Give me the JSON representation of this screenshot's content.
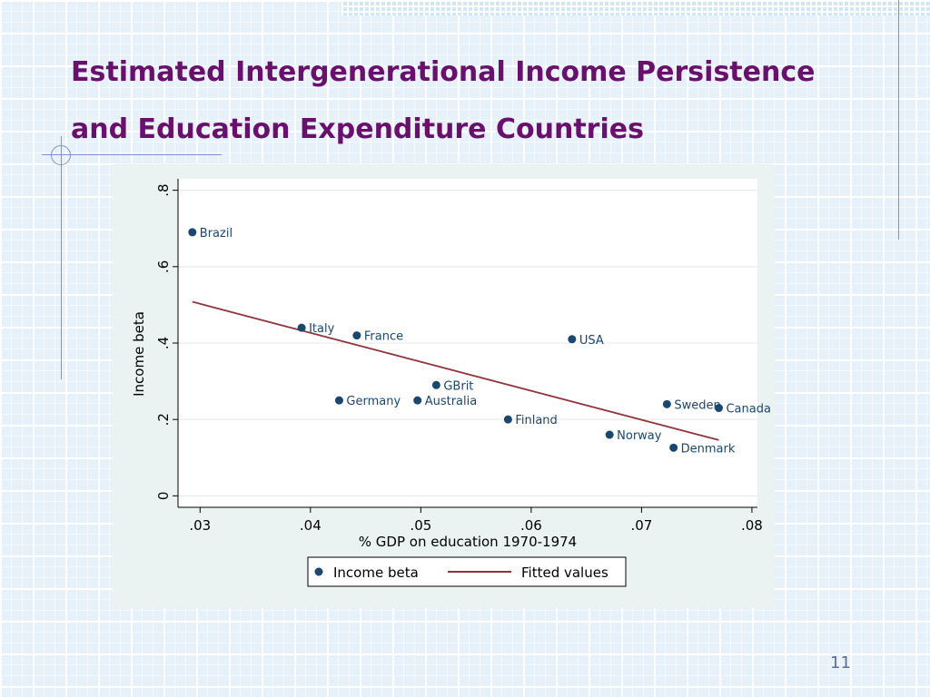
{
  "slide": {
    "title_line1": "Estimated Intergenerational Income Persistence",
    "title_line2": "and Education Expenditure Countries",
    "page_number": "11"
  },
  "colors": {
    "title": "#6b0f6e",
    "marker": "#1a476f",
    "fit_line": "#90353b",
    "plot_bg": "#ffffff",
    "panel_bg": "#eaf2f2"
  },
  "chart_data": {
    "type": "scatter",
    "xlabel": "% GDP on education 1970-1974",
    "ylabel": "Income beta",
    "xlim": [
      0.028,
      0.0805
    ],
    "ylim": [
      -0.03,
      0.83
    ],
    "xticks": [
      {
        "value": 0.03,
        "label": ".03"
      },
      {
        "value": 0.04,
        "label": ".04"
      },
      {
        "value": 0.05,
        "label": ".05"
      },
      {
        "value": 0.06,
        "label": ".06"
      },
      {
        "value": 0.07,
        "label": ".07"
      },
      {
        "value": 0.08,
        "label": ".08"
      }
    ],
    "yticks": [
      {
        "value": 0,
        "label": "0"
      },
      {
        "value": 0.2,
        "label": ".2"
      },
      {
        "value": 0.4,
        "label": ".4"
      },
      {
        "value": 0.6,
        "label": ".6"
      },
      {
        "value": 0.8,
        "label": ".8"
      }
    ],
    "grid": true,
    "legend_position": "bottom",
    "series": [
      {
        "name": "Income beta",
        "kind": "scatter",
        "points": [
          {
            "label": "Brazil",
            "x": 0.0293,
            "y": 0.69
          },
          {
            "label": "Italy",
            "x": 0.0392,
            "y": 0.44
          },
          {
            "label": "France",
            "x": 0.0442,
            "y": 0.42
          },
          {
            "label": "Germany",
            "x": 0.0426,
            "y": 0.25
          },
          {
            "label": "Australia",
            "x": 0.0497,
            "y": 0.25
          },
          {
            "label": "GBrit",
            "x": 0.0514,
            "y": 0.29
          },
          {
            "label": "Finland",
            "x": 0.0579,
            "y": 0.2
          },
          {
            "label": "USA",
            "x": 0.0637,
            "y": 0.41
          },
          {
            "label": "Norway",
            "x": 0.0671,
            "y": 0.16
          },
          {
            "label": "Sweden",
            "x": 0.0723,
            "y": 0.24
          },
          {
            "label": "Canada",
            "x": 0.077,
            "y": 0.23
          },
          {
            "label": "Denmark",
            "x": 0.0729,
            "y": 0.126
          }
        ]
      },
      {
        "name": "Fitted values",
        "kind": "line",
        "points": [
          {
            "x": 0.0293,
            "y": 0.508
          },
          {
            "x": 0.077,
            "y": 0.146
          }
        ]
      }
    ]
  }
}
